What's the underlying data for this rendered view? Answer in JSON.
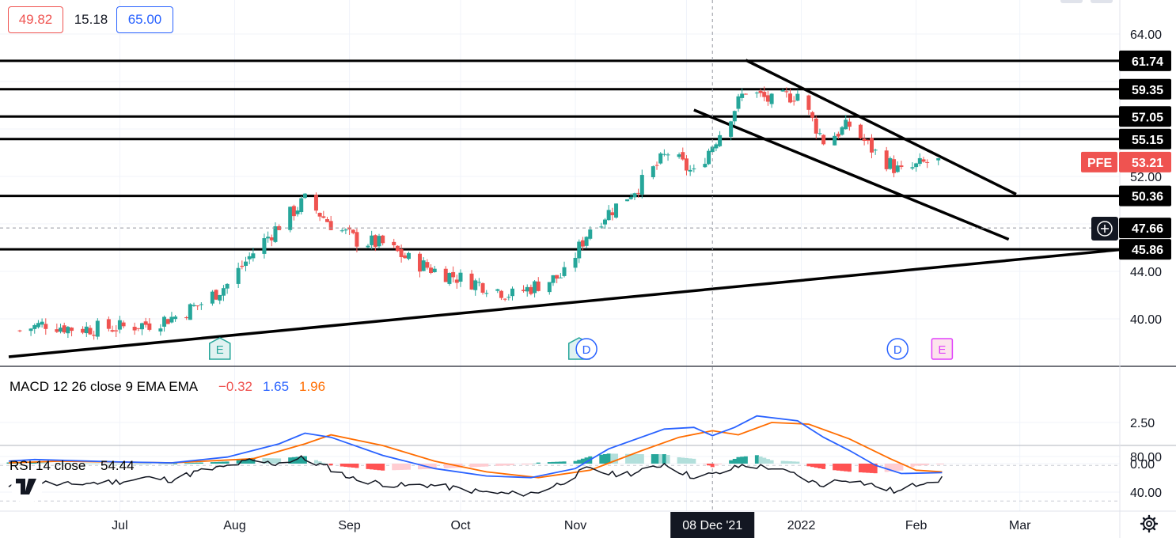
{
  "header": {
    "bid": "49.82",
    "spread": "15.18",
    "ask": "65.00"
  },
  "symbol": "PFE",
  "current_price": "53.21",
  "crosshair_price": "47.66",
  "crosshair_date": "08 Dec '21",
  "colors": {
    "up": "#26a69a",
    "down": "#ef5350",
    "macd_line": "#2962ff",
    "signal_line": "#ff6d00",
    "hist_pos_strong": "#26a69a",
    "hist_pos_weak": "#b2dfdb",
    "hist_neg_strong": "#ff5252",
    "hist_neg_weak": "#ffcdd2",
    "trendline": "#000000",
    "tag_bg": "#000000",
    "price_tag_bg": "#ef5350"
  },
  "macd_legend": {
    "title": "MACD 12 26 close 9 EMA EMA",
    "histogram": "−0.32",
    "macd": "1.65",
    "signal": "1.96"
  },
  "rsi_legend": {
    "title": "RSI 14 close",
    "value": "54.44"
  },
  "events": [
    {
      "label": "E",
      "kind": "earnings",
      "date": "2021-07-28"
    },
    {
      "label": "E",
      "kind": "earnings",
      "date": "2021-11-02"
    },
    {
      "label": "D",
      "kind": "dividend",
      "date": "2021-11-04"
    },
    {
      "label": "D",
      "kind": "dividend",
      "date": "2022-01-27"
    },
    {
      "label": "E",
      "kind": "earnings-upcoming",
      "date": "2022-02-08"
    }
  ],
  "chart_data": {
    "type": "candlestick",
    "symbol": "PFE",
    "x_axis_labels": [
      "Jul",
      "Aug",
      "Sep",
      "Oct",
      "Nov",
      "08 Dec '21",
      "2022",
      "Feb",
      "Mar"
    ],
    "price_axis": {
      "ticks": [
        "64.00",
        "52.00",
        "44.00",
        "40.00"
      ],
      "ylim": [
        36.5,
        66.5
      ]
    },
    "horizontal_levels": [
      "61.74",
      "59.35",
      "57.05",
      "55.15",
      "50.36",
      "45.86"
    ],
    "trendlines": [
      {
        "name": "support",
        "from": [
          "2021-06-01",
          36.8
        ],
        "to": [
          "2022-03-29",
          45.86
        ]
      },
      {
        "name": "channel-top",
        "from": [
          "2021-12-17",
          61.8
        ],
        "to": [
          "2022-02-28",
          50.5
        ]
      },
      {
        "name": "channel-bottom",
        "from": [
          "2021-12-03",
          57.6
        ],
        "to": [
          "2022-02-26",
          46.7
        ]
      }
    ],
    "weekly_close": [
      {
        "date": "2021-06-04",
        "value": 39.0
      },
      {
        "date": "2021-06-11",
        "value": 39.6
      },
      {
        "date": "2021-06-18",
        "value": 39.2
      },
      {
        "date": "2021-06-25",
        "value": 39.2
      },
      {
        "date": "2021-07-02",
        "value": 39.3
      },
      {
        "date": "2021-07-09",
        "value": 39.6
      },
      {
        "date": "2021-07-16",
        "value": 40.2
      },
      {
        "date": "2021-07-23",
        "value": 41.3
      },
      {
        "date": "2021-07-30",
        "value": 42.9
      },
      {
        "date": "2021-08-06",
        "value": 45.6
      },
      {
        "date": "2021-08-13",
        "value": 47.9
      },
      {
        "date": "2021-08-20",
        "value": 50.0
      },
      {
        "date": "2021-08-27",
        "value": 48.0
      },
      {
        "date": "2021-09-03",
        "value": 46.6
      },
      {
        "date": "2021-09-10",
        "value": 46.3
      },
      {
        "date": "2021-09-17",
        "value": 45.0
      },
      {
        "date": "2021-09-24",
        "value": 44.1
      },
      {
        "date": "2021-10-01",
        "value": 43.4
      },
      {
        "date": "2021-10-08",
        "value": 42.8
      },
      {
        "date": "2021-10-15",
        "value": 42.0
      },
      {
        "date": "2021-10-22",
        "value": 42.9
      },
      {
        "date": "2021-10-29",
        "value": 43.7
      },
      {
        "date": "2021-11-05",
        "value": 47.7
      },
      {
        "date": "2021-11-12",
        "value": 49.5
      },
      {
        "date": "2021-11-19",
        "value": 51.5
      },
      {
        "date": "2021-11-26",
        "value": 54.0
      },
      {
        "date": "2021-12-03",
        "value": 52.2
      },
      {
        "date": "2021-12-10",
        "value": 55.7
      },
      {
        "date": "2021-12-17",
        "value": 59.3
      },
      {
        "date": "2021-12-24",
        "value": 58.3
      },
      {
        "date": "2021-12-31",
        "value": 59.0
      },
      {
        "date": "2022-01-07",
        "value": 55.0
      },
      {
        "date": "2022-01-14",
        "value": 56.3
      },
      {
        "date": "2022-01-21",
        "value": 54.0
      },
      {
        "date": "2022-01-28",
        "value": 52.3
      },
      {
        "date": "2022-02-04",
        "value": 53.2
      },
      {
        "date": "2022-02-08",
        "value": 53.21
      }
    ],
    "macd": {
      "range": [
        -0.8,
        3.0
      ],
      "ticks": [
        "2.50",
        "0.00"
      ],
      "series": [
        {
          "name": "MACD",
          "points": [
            [
              "2021-06-01",
              0.15
            ],
            [
              "2021-06-08",
              0.25
            ],
            [
              "2021-07-01",
              0.1
            ],
            [
              "2021-07-15",
              0.05
            ],
            [
              "2021-07-30",
              0.4
            ],
            [
              "2021-08-13",
              1.2
            ],
            [
              "2021-08-20",
              1.85
            ],
            [
              "2021-08-27",
              1.6
            ],
            [
              "2021-09-10",
              0.5
            ],
            [
              "2021-09-24",
              -0.3
            ],
            [
              "2021-10-08",
              -0.75
            ],
            [
              "2021-10-20",
              -0.85
            ],
            [
              "2021-11-01",
              -0.3
            ],
            [
              "2021-11-10",
              0.9
            ],
            [
              "2021-11-25",
              2.1
            ],
            [
              "2021-12-03",
              2.2
            ],
            [
              "2021-12-08",
              1.7
            ],
            [
              "2021-12-14",
              2.2
            ],
            [
              "2021-12-20",
              2.9
            ],
            [
              "2021-12-31",
              2.6
            ],
            [
              "2022-01-07",
              1.6
            ],
            [
              "2022-01-14",
              0.8
            ],
            [
              "2022-01-21",
              -0.1
            ],
            [
              "2022-01-28",
              -0.6
            ],
            [
              "2022-02-08",
              -0.55
            ]
          ]
        },
        {
          "name": "Signal",
          "points": [
            [
              "2021-06-01",
              0.05
            ],
            [
              "2021-06-15",
              0.15
            ],
            [
              "2021-07-15",
              0.05
            ],
            [
              "2021-08-06",
              0.3
            ],
            [
              "2021-08-20",
              1.2
            ],
            [
              "2021-08-27",
              1.75
            ],
            [
              "2021-09-10",
              1.1
            ],
            [
              "2021-09-24",
              0.15
            ],
            [
              "2021-10-08",
              -0.5
            ],
            [
              "2021-10-22",
              -0.85
            ],
            [
              "2021-11-05",
              -0.4
            ],
            [
              "2021-11-19",
              0.8
            ],
            [
              "2021-11-29",
              1.6
            ],
            [
              "2021-12-08",
              2.0
            ],
            [
              "2021-12-15",
              1.75
            ],
            [
              "2021-12-24",
              2.5
            ],
            [
              "2022-01-03",
              2.4
            ],
            [
              "2022-01-14",
              1.5
            ],
            [
              "2022-01-25",
              0.3
            ],
            [
              "2022-02-01",
              -0.4
            ],
            [
              "2022-02-08",
              -0.5
            ]
          ]
        }
      ]
    },
    "rsi": {
      "range": [
        30,
        90
      ],
      "ticks": [
        "80.00",
        "40.00"
      ],
      "points": [
        [
          "2021-06-01",
          45
        ],
        [
          "2021-06-08",
          52
        ],
        [
          "2021-06-15",
          48
        ],
        [
          "2021-06-22",
          50
        ],
        [
          "2021-07-01",
          52
        ],
        [
          "2021-07-08",
          56
        ],
        [
          "2021-07-15",
          54
        ],
        [
          "2021-07-22",
          63
        ],
        [
          "2021-07-29",
          68
        ],
        [
          "2021-08-05",
          75
        ],
        [
          "2021-08-12",
          72
        ],
        [
          "2021-08-19",
          78
        ],
        [
          "2021-08-26",
          68
        ],
        [
          "2021-09-02",
          55
        ],
        [
          "2021-09-09",
          50
        ],
        [
          "2021-09-16",
          47
        ],
        [
          "2021-09-23",
          48
        ],
        [
          "2021-09-30",
          44
        ],
        [
          "2021-10-07",
          40
        ],
        [
          "2021-10-14",
          38
        ],
        [
          "2021-10-21",
          39
        ],
        [
          "2021-10-28",
          50
        ],
        [
          "2021-11-04",
          66
        ],
        [
          "2021-11-11",
          60
        ],
        [
          "2021-11-18",
          62
        ],
        [
          "2021-11-25",
          72
        ],
        [
          "2021-12-02",
          58
        ],
        [
          "2021-12-09",
          60
        ],
        [
          "2021-12-16",
          70
        ],
        [
          "2021-12-23",
          68
        ],
        [
          "2021-12-30",
          60
        ],
        [
          "2022-01-06",
          48
        ],
        [
          "2022-01-13",
          55
        ],
        [
          "2022-01-20",
          48
        ],
        [
          "2022-01-27",
          40
        ],
        [
          "2022-02-03",
          52
        ],
        [
          "2022-02-08",
          54.44
        ]
      ]
    }
  },
  "footer": {
    "settings_icon": "gear-icon",
    "logo": "TV"
  }
}
